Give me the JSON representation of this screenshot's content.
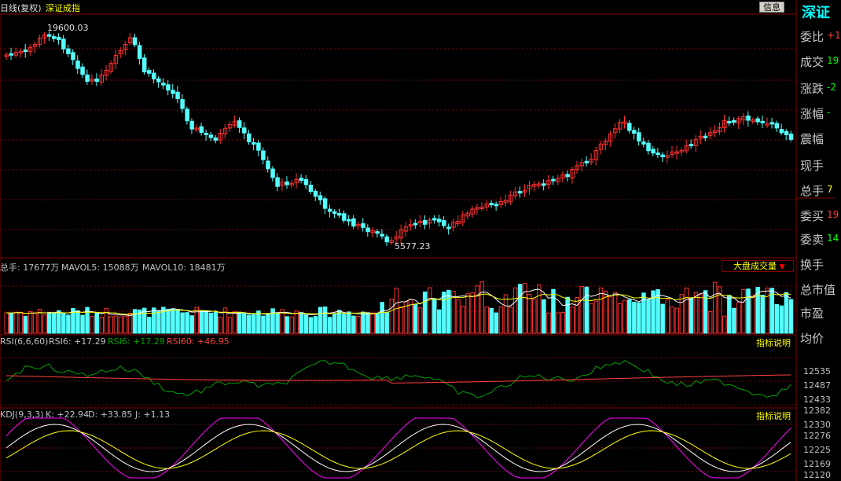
{
  "header": {
    "period_label": "日线(复权)",
    "index_name": "深证成指",
    "info_button": "信息"
  },
  "sidebar": {
    "title": "深证",
    "items": [
      {
        "label": "委比",
        "value": "+1",
        "color": "#ff4040"
      },
      {
        "label": "成交",
        "value": "19",
        "color": "#00ff00"
      },
      {
        "label": "涨跌",
        "value": "-2",
        "color": "#00ff00"
      },
      {
        "label": "涨幅",
        "value": "-",
        "color": "#00ff00"
      },
      {
        "label": "震幅",
        "value": "",
        "color": "#c0c0c0"
      },
      {
        "label": "现手",
        "value": "",
        "color": "#c0c0c0"
      },
      {
        "label": "总手",
        "value": "7",
        "color": "#ffff00"
      },
      {
        "label": "委买",
        "value": "19",
        "color": "#ff4040"
      },
      {
        "label": "委卖",
        "value": "14",
        "color": "#00ff00"
      },
      {
        "label": "换手",
        "value": "",
        "color": "#c0c0c0"
      },
      {
        "label": "总市值",
        "value": "",
        "color": "#c0c0c0"
      },
      {
        "label": "市盈",
        "value": "",
        "color": "#c0c0c0"
      },
      {
        "label": "均价",
        "value": "",
        "color": "#c0c0c0"
      }
    ]
  },
  "main_chart": {
    "high_label": "19600.03",
    "low_label": "5577.23"
  },
  "volume_panel": {
    "label_total": "总手: 17677万",
    "label_mavol5": "MAVOL5: 15088万",
    "label_mavol10": "MAVOL10: 18481万",
    "selector": "大盘成交量",
    "selector_arrow": "▼"
  },
  "rsi_panel": {
    "name": "RSI(6,6,60)",
    "rsi6_a": "RSI6: +17.29",
    "rsi6_b": "RSI6: +17.29",
    "rsi60": "RSI60: +46.95",
    "help": "指标说明"
  },
  "kdj_panel": {
    "name": "KDJ(9,3,3)",
    "k": "K: +22.94",
    "d": "D: +33.85",
    "j": "J: +1.13",
    "help": "指标说明"
  },
  "right_axis": [
    "12535",
    "12487",
    "12433",
    "12382",
    "12330",
    "12276",
    "12225",
    "12169",
    "12120"
  ],
  "colors": {
    "up": "#ff3232",
    "down": "#54ffff",
    "grid": "#800000",
    "ma5": "#ffffff",
    "ma10": "#ffff00",
    "rsi_fast": "#00a000",
    "rsi_slow": "#ff4040",
    "kdj_k": "#ffffff",
    "kdj_d": "#ffff00",
    "kdj_j": "#ff00ff"
  }
}
